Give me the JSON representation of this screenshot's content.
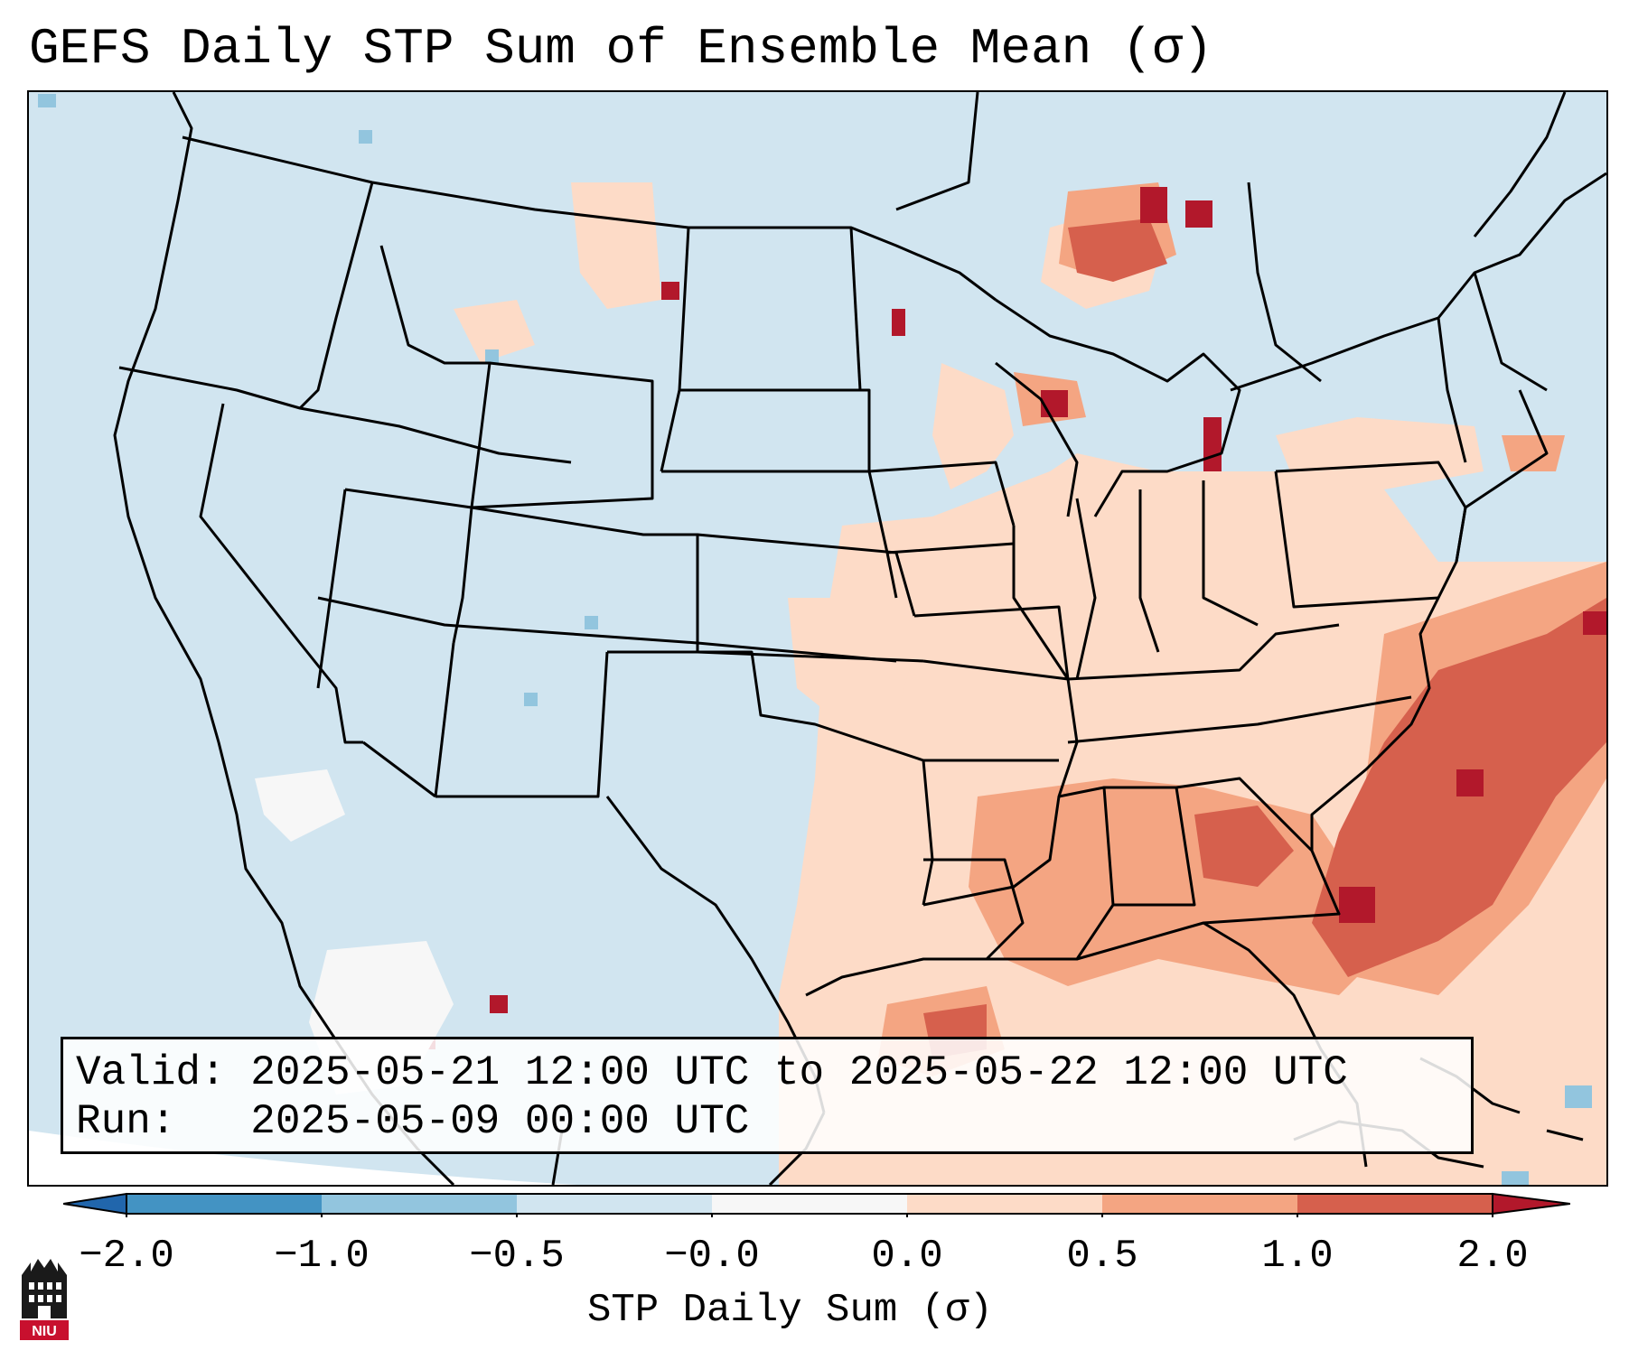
{
  "title": "GEFS Daily STP Sum of Ensemble Mean (σ)",
  "valid_line": "Valid: 2025-05-21 12:00 UTC to 2025-05-22 12:00 UTC",
  "run_line": "Run:   2025-05-09 00:00 UTC",
  "colorbar": {
    "label": "STP Daily Sum (σ)",
    "ticks": [
      "−2.0",
      "−1.0",
      "−0.5",
      "−0.0",
      "0.0",
      "0.5",
      "1.0",
      "2.0"
    ],
    "bins": [
      {
        "range": "< -2.0",
        "color": "#2166ac"
      },
      {
        "range": "-2.0 to -1.0",
        "color": "#4393c3"
      },
      {
        "range": "-1.0 to -0.5",
        "color": "#92c5de"
      },
      {
        "range": "-0.5 to -0.0",
        "color": "#d1e5f0"
      },
      {
        "range": "-0.0 to 0.0",
        "color": "#f7f7f7"
      },
      {
        "range": "0.0 to 0.5",
        "color": "#fddbc7"
      },
      {
        "range": "0.5 to 1.0",
        "color": "#f4a582"
      },
      {
        "range": "1.0 to 2.0",
        "color": "#d6604d"
      },
      {
        "range": "> 2.0",
        "color": "#b2182b"
      }
    ]
  },
  "logo": {
    "text": "NIU",
    "color": "#c8102e"
  },
  "map": {
    "region": "Continental United States",
    "background_color": "#d1e5f0",
    "boundary_color": "#000000"
  }
}
